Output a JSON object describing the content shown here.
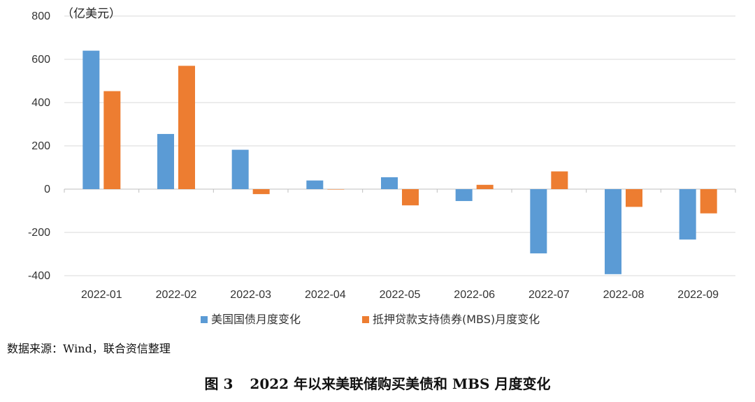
{
  "chart_data": {
    "type": "bar",
    "unit_label": "（亿美元）",
    "categories": [
      "2022-01",
      "2022-02",
      "2022-03",
      "2022-04",
      "2022-05",
      "2022-06",
      "2022-07",
      "2022-08",
      "2022-09"
    ],
    "series": [
      {
        "name": "美国国债月度变化",
        "color": "#5B9BD5",
        "values": [
          640,
          255,
          182,
          40,
          55,
          -55,
          -297,
          -393,
          -233
        ]
      },
      {
        "name": "抵押贷款支持债券(MBS)月度变化",
        "color": "#ED7D31",
        "values": [
          453,
          570,
          -23,
          0,
          -75,
          20,
          82,
          -82,
          -112
        ]
      }
    ],
    "ylim": [
      -400,
      800
    ],
    "yticks": [
      800,
      600,
      400,
      200,
      0,
      -200,
      -400
    ],
    "ytick_labels": [
      "800",
      "600",
      "400",
      "200",
      "0",
      "-200",
      "-400"
    ],
    "grid": true,
    "legend_position": "bottom"
  },
  "source_note": "数据来源：Wind，联合资信整理",
  "caption": {
    "figure_number": "图 3",
    "title": "2022 年以来美联储购买美债和 MBS 月度变化"
  }
}
